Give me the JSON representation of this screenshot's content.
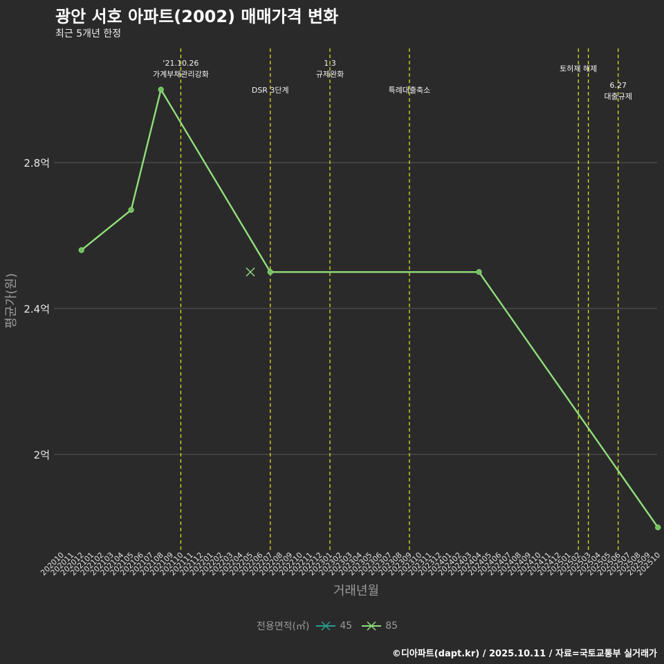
{
  "header": {
    "title": "광안 서호 아파트(2002) 매매가격 변화",
    "subtitle": "최근 5개년 한정"
  },
  "caption": "©디아파트(dapt.kr) / 2025.10.11 / 자료=국토교통부 실거래가",
  "legend": {
    "title": "전용면적(㎡)",
    "items": [
      {
        "label": "45",
        "color": "#2a9d8f"
      },
      {
        "label": "85",
        "color": "#90e07a"
      }
    ]
  },
  "colors": {
    "background": "#2b2a2b",
    "grid": "#5a5a5a",
    "event_line": "#d8e31a",
    "series_85": "#90e07a",
    "series_45": "#2a9d8f"
  },
  "chart_data": {
    "type": "line",
    "title": "광안 서호 아파트(2002) 매매가격 변화",
    "xlabel": "거래년월",
    "ylabel": "평균가(원)",
    "ylim": [
      1.75,
      3.0
    ],
    "y_ticks": [
      {
        "value": 2.0,
        "label": "2억"
      },
      {
        "value": 2.4,
        "label": "2.4억"
      },
      {
        "value": 2.8,
        "label": "2.8억"
      }
    ],
    "categories": [
      "202010",
      "202011",
      "202012",
      "202101",
      "202102",
      "202103",
      "202104",
      "202105",
      "202106",
      "202107",
      "202108",
      "202109",
      "202110",
      "202111",
      "202112",
      "202201",
      "202202",
      "202203",
      "202204",
      "202205",
      "202206",
      "202207",
      "202208",
      "202209",
      "202210",
      "202211",
      "202212",
      "202301",
      "202302",
      "202303",
      "202304",
      "202305",
      "202306",
      "202307",
      "202308",
      "202309",
      "202310",
      "202311",
      "202312",
      "202401",
      "202402",
      "202403",
      "202404",
      "202405",
      "202406",
      "202407",
      "202408",
      "202409",
      "202410",
      "202411",
      "202412",
      "202501",
      "202502",
      "202503",
      "202504",
      "202505",
      "202506",
      "202507",
      "202508",
      "202509",
      "202510"
    ],
    "series": [
      {
        "name": "85",
        "color": "#90e07a",
        "points": [
          {
            "x": "202012",
            "y": 2.56
          },
          {
            "x": "202105",
            "y": 2.67
          },
          {
            "x": "202108",
            "y": 3.0
          },
          {
            "x": "202207",
            "y": 2.5
          },
          {
            "x": "202404",
            "y": 2.5
          },
          {
            "x": "202510",
            "y": 1.8
          }
        ]
      },
      {
        "name": "45",
        "color": "#2a9d8f",
        "points": []
      }
    ],
    "markers": [
      {
        "x": "202205",
        "y": 2.5,
        "shape": "x",
        "color": "#90e07a"
      }
    ],
    "events": [
      {
        "x": "202110",
        "lines": [
          "'21.10.26",
          "가계부채관리강화"
        ],
        "row": 1
      },
      {
        "x": "202207",
        "lines": [
          "DSR 3단계"
        ],
        "row": 3
      },
      {
        "x": "202301",
        "lines": [
          "1.3",
          "규제완화"
        ],
        "row": 1
      },
      {
        "x": "202309",
        "lines": [
          "특례대출축소"
        ],
        "row": 3
      },
      {
        "x": "202502",
        "lines": [
          "토허제 해제"
        ],
        "row": 2
      },
      {
        "x": "202503",
        "lines": [],
        "row": 2
      },
      {
        "x": "202506",
        "lines": [
          "6.27",
          "대출규제"
        ],
        "row": 4
      }
    ]
  }
}
